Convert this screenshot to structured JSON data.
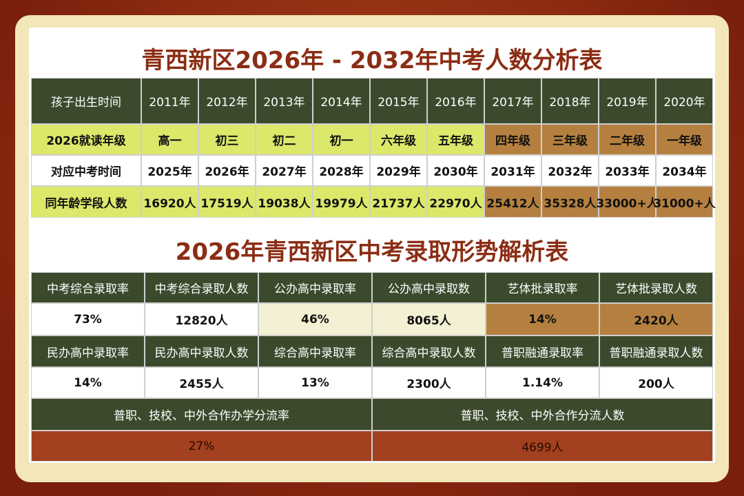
{
  "title1": "青西新区2026年 - 2032年中考人数分析表",
  "table1": {
    "rows": [
      [
        "孩子出生时间",
        "2011年",
        "2012年",
        "2013年",
        "2014年",
        "2015年",
        "2016年",
        "2017年",
        "2018年",
        "2019年",
        "2020年"
      ],
      [
        "2026就读年级",
        "高一",
        "初三",
        "初二",
        "初一",
        "六年级",
        "五年级",
        "四年级",
        "三年级",
        "二年级",
        "一年级"
      ],
      [
        "对应中考时间",
        "2025年",
        "2026年",
        "2027年",
        "2028年",
        "2029年",
        "2030年",
        "2031年",
        "2032年",
        "2033年",
        "2034年"
      ],
      [
        "同年龄学段人数",
        "16920人",
        "17519人",
        "19038人",
        "19979人",
        "21737人",
        "22970人",
        "25412人",
        "35328人",
        "33000+人",
        "31000+人"
      ]
    ]
  },
  "title2": "2026年青西新区中考录取形势解析表",
  "table2": {
    "rows": [
      [
        "中考综合录取率",
        "中考综合录取人数",
        "公办高中录取率",
        "公办高中录取数",
        "艺体批录取率",
        "艺体批录取人数"
      ],
      [
        "73%",
        "12820人",
        "46%",
        "8065人",
        "14%",
        "2420人"
      ],
      [
        "民办高中录取率",
        "民办高中录取人数",
        "综合高中录取率",
        "综合高中录取人数",
        "普职融通录取率",
        "普职融通录取人数"
      ],
      [
        "14%",
        "2455人",
        "13%",
        "2300人",
        "1.14%",
        "200人"
      ],
      [
        "普职、技校、中外合作办学分流率",
        "普职、技校、中外合作分流人数"
      ],
      [
        "27%",
        "4699人"
      ]
    ]
  }
}
